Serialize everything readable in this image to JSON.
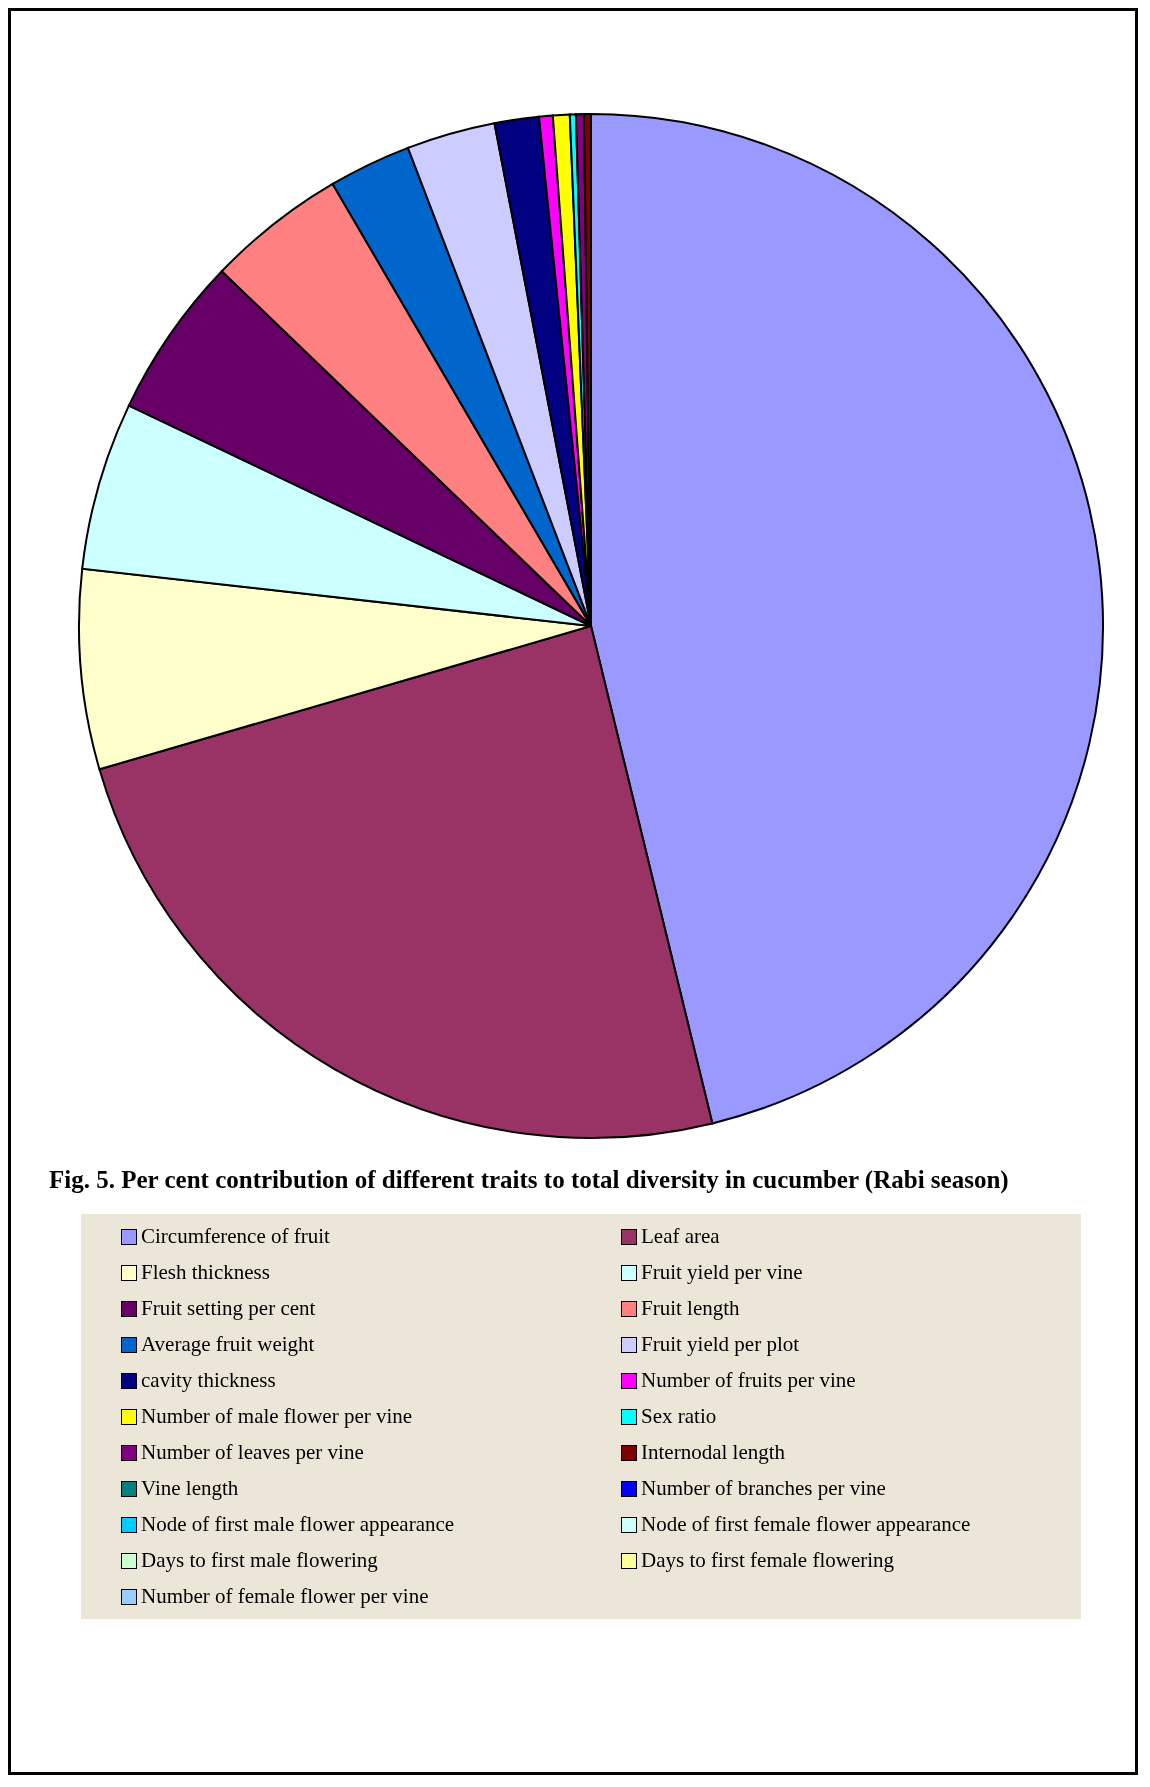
{
  "chart_data": {
    "type": "pie",
    "title": "Fig. 5. Per cent contribution of different traits to total diversity in cucumber (Rabi season)",
    "legend": "bottom",
    "categories": [
      "Circumference of fruit",
      "Leaf area",
      "Flesh thickness",
      "Fruit yield per vine",
      "Fruit setting per cent",
      "Fruit length",
      "Average fruit weight",
      "Fruit yield per plot",
      "cavity thickness",
      "Number of fruits per vine",
      "Number of male flower per vine",
      "Sex ratio",
      "Number of leaves per vine",
      "Internodal length",
      "Vine length",
      "Number of branches per vine",
      "Node of first male flower appearance",
      "Node of first female flower appearance",
      "Days to first male flowering",
      "Days to first female flowering",
      "Number of female flower per vine"
    ],
    "values": [
      46.2,
      24.3,
      6.3,
      5.3,
      5.1,
      4.4,
      2.6,
      2.8,
      1.4,
      0.43,
      0.53,
      0.19,
      0.25,
      0.22,
      0,
      0,
      0,
      0,
      0,
      0,
      0
    ],
    "colors": [
      "#9999ff",
      "#993366",
      "#ffffcc",
      "#ccffff",
      "#660066",
      "#ff8080",
      "#0066cc",
      "#ccccff",
      "#000080",
      "#ff00ff",
      "#ffff00",
      "#00ffff",
      "#800080",
      "#800000",
      "#008080",
      "#0000ff",
      "#00ccff",
      "#ccffff",
      "#ccffcc",
      "#ffff99",
      "#99ccff"
    ]
  }
}
